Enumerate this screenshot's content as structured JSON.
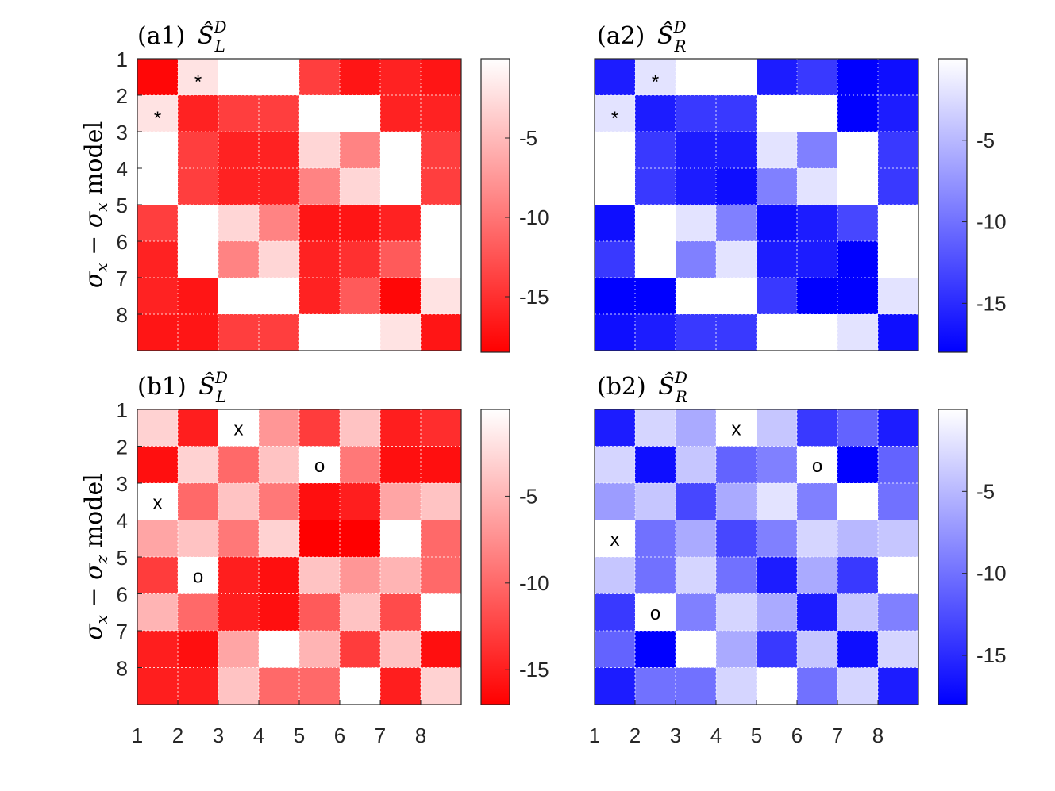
{
  "chart_data": [
    {
      "type": "heatmap",
      "title": "(a1)",
      "title_math": {
        "base": "Ŝ",
        "sup": "D",
        "sub": "L"
      },
      "colormap": "red",
      "ylabel": {
        "s1": "σ",
        "s1_sub": "x",
        "dash": "−",
        "s2": "σ",
        "s2_sub": "x",
        "word": "model"
      },
      "y_ticks": [
        "1",
        "2",
        "3",
        "4",
        "5",
        "6",
        "7",
        "8"
      ],
      "x_ticks": [],
      "colorbar_ticks": [
        -5,
        -10,
        -15
      ],
      "clim": [
        -18.5,
        0
      ],
      "values": [
        [
          -18,
          -2,
          0,
          0,
          -14,
          -17,
          -16,
          -17
        ],
        [
          -2,
          -16,
          -14,
          -14,
          0,
          0,
          -16,
          -16
        ],
        [
          0,
          -14,
          -16,
          -16,
          -3,
          -9,
          0,
          -14
        ],
        [
          0,
          -14,
          -16,
          -16,
          -9,
          -3,
          0,
          -14
        ],
        [
          -14,
          0,
          -3,
          -9,
          -17,
          -17,
          -16,
          0
        ],
        [
          -16,
          0,
          -9,
          -3,
          -16,
          -15,
          -12,
          0
        ],
        [
          -16,
          -17,
          0,
          0,
          -16,
          -12,
          -18,
          -2
        ],
        [
          -17,
          -17,
          -14,
          -14,
          0,
          0,
          -2,
          -17
        ]
      ],
      "markers": [
        {
          "row": 0,
          "col": 1,
          "text": "*"
        },
        {
          "row": 1,
          "col": 0,
          "text": "*"
        }
      ]
    },
    {
      "type": "heatmap",
      "title": "(a2)",
      "title_math": {
        "base": "Ŝ",
        "sup": "D",
        "sub": "R"
      },
      "colormap": "blue",
      "y_ticks": [],
      "x_ticks": [],
      "colorbar_ticks": [
        -5,
        -10,
        -15
      ],
      "clim": [
        -18,
        0
      ],
      "values": [
        [
          -16,
          -2,
          0,
          0,
          -16,
          -14,
          -18,
          -17
        ],
        [
          -2,
          -16,
          -14,
          -14,
          0,
          0,
          -18,
          -16
        ],
        [
          0,
          -14,
          -16,
          -16,
          -2,
          -9,
          0,
          -14
        ],
        [
          0,
          -14,
          -16,
          -17,
          -9,
          -2,
          0,
          -14
        ],
        [
          -17,
          0,
          -2,
          -9,
          -17,
          -16,
          -13,
          0
        ],
        [
          -14,
          0,
          -9,
          -2,
          -16,
          -16,
          -18,
          0
        ],
        [
          -18,
          -18,
          0,
          0,
          -14,
          -18,
          -18,
          -2
        ],
        [
          -17,
          -16,
          -14,
          -14,
          0,
          0,
          -2,
          -17
        ]
      ],
      "markers": [
        {
          "row": 0,
          "col": 1,
          "text": "*"
        },
        {
          "row": 1,
          "col": 0,
          "text": "*"
        }
      ]
    },
    {
      "type": "heatmap",
      "title": "(b1)",
      "title_math": {
        "base": "Ŝ",
        "sup": "D",
        "sub": "L"
      },
      "colormap": "red",
      "ylabel": {
        "s1": "σ",
        "s1_sub": "x",
        "dash": "−",
        "s2": "σ",
        "s2_sub": "z",
        "word": "model"
      },
      "y_ticks": [
        "1",
        "2",
        "3",
        "4",
        "5",
        "6",
        "7",
        "8"
      ],
      "x_ticks": [
        "1",
        "2",
        "3",
        "4",
        "5",
        "6",
        "7",
        "8"
      ],
      "colorbar_ticks": [
        -5,
        -10,
        -15
      ],
      "clim": [
        -17,
        0
      ],
      "values": [
        [
          -3,
          -15,
          0,
          -7,
          -13,
          -4,
          -15,
          -14
        ],
        [
          -16,
          -3,
          -10,
          -4,
          0,
          -9,
          -16,
          -16
        ],
        [
          0,
          -10,
          -4,
          -9,
          -16,
          -15,
          -6,
          -4
        ],
        [
          -6,
          -4,
          -9,
          -3,
          -17,
          -17,
          0,
          -10
        ],
        [
          -13,
          0,
          -15,
          -16,
          -4,
          -7,
          -5,
          -10
        ],
        [
          -5,
          -10,
          -15,
          -16,
          -11,
          -4,
          -12,
          0
        ],
        [
          -15,
          -16,
          -6,
          0,
          -5,
          -13,
          -4,
          -16
        ],
        [
          -15,
          -15,
          -4,
          -10,
          -10,
          0,
          -15,
          -3
        ]
      ],
      "markers": [
        {
          "row": 0,
          "col": 2,
          "text": "x"
        },
        {
          "row": 1,
          "col": 4,
          "text": "o"
        },
        {
          "row": 2,
          "col": 0,
          "text": "x"
        },
        {
          "row": 4,
          "col": 1,
          "text": "o"
        }
      ]
    },
    {
      "type": "heatmap",
      "title": "(b2)",
      "title_math": {
        "base": "Ŝ",
        "sup": "D",
        "sub": "R"
      },
      "colormap": "blue",
      "y_ticks": [],
      "x_ticks": [
        "1",
        "2",
        "3",
        "4",
        "5",
        "6",
        "7",
        "8"
      ],
      "colorbar_ticks": [
        -5,
        -10,
        -15
      ],
      "clim": [
        -18,
        0
      ],
      "values": [
        [
          -16,
          -3,
          -6,
          0,
          -4,
          -14,
          -11,
          -16
        ],
        [
          -3,
          -17,
          -4,
          -11,
          -9,
          0,
          -18,
          -11
        ],
        [
          -7,
          -4,
          -13,
          -6,
          -2,
          -9,
          0,
          -10
        ],
        [
          0,
          -10,
          -6,
          -13,
          -9,
          -3,
          -5,
          -4
        ],
        [
          -4,
          -10,
          -3,
          -10,
          -16,
          -6,
          -14,
          0
        ],
        [
          -14,
          0,
          -9,
          -3,
          -6,
          -16,
          -4,
          -9
        ],
        [
          -11,
          -18,
          0,
          -6,
          -14,
          -4,
          -17,
          -3
        ],
        [
          -16,
          -10,
          -10,
          -3,
          0,
          -10,
          -3,
          -16
        ]
      ],
      "markers": [
        {
          "row": 0,
          "col": 3,
          "text": "x"
        },
        {
          "row": 1,
          "col": 5,
          "text": "o"
        },
        {
          "row": 3,
          "col": 0,
          "text": "x"
        },
        {
          "row": 5,
          "col": 1,
          "text": "o"
        }
      ]
    }
  ]
}
